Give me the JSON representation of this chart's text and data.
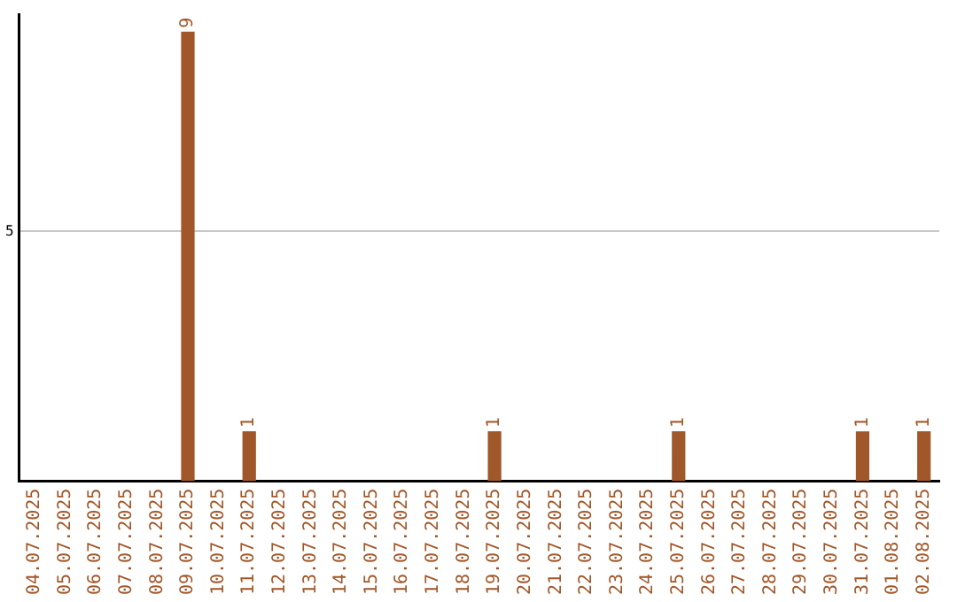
{
  "chart_data": {
    "type": "bar",
    "categories": [
      "04.07.2025",
      "05.07.2025",
      "06.07.2025",
      "07.07.2025",
      "08.07.2025",
      "09.07.2025",
      "10.07.2025",
      "11.07.2025",
      "12.07.2025",
      "13.07.2025",
      "14.07.2025",
      "15.07.2025",
      "16.07.2025",
      "17.07.2025",
      "18.07.2025",
      "19.07.2025",
      "20.07.2025",
      "21.07.2025",
      "22.07.2025",
      "23.07.2025",
      "24.07.2025",
      "25.07.2025",
      "26.07.2025",
      "27.07.2025",
      "28.07.2025",
      "29.07.2025",
      "30.07.2025",
      "31.07.2025",
      "01.08.2025",
      "02.08.2025"
    ],
    "values": [
      0,
      0,
      0,
      0,
      0,
      9,
      0,
      1,
      0,
      0,
      0,
      0,
      0,
      0,
      0,
      1,
      0,
      0,
      0,
      0,
      0,
      1,
      0,
      0,
      0,
      0,
      0,
      1,
      0,
      1
    ],
    "value_labels": [
      null,
      null,
      null,
      null,
      null,
      "9",
      null,
      "1",
      null,
      null,
      null,
      null,
      null,
      null,
      null,
      "1",
      null,
      null,
      null,
      null,
      null,
      "1",
      null,
      null,
      null,
      null,
      null,
      "1",
      null,
      "1"
    ],
    "color": "#a0572a",
    "ylim": [
      0,
      9.35
    ],
    "yticks": [
      5
    ],
    "grid": "y",
    "legend": false
  }
}
